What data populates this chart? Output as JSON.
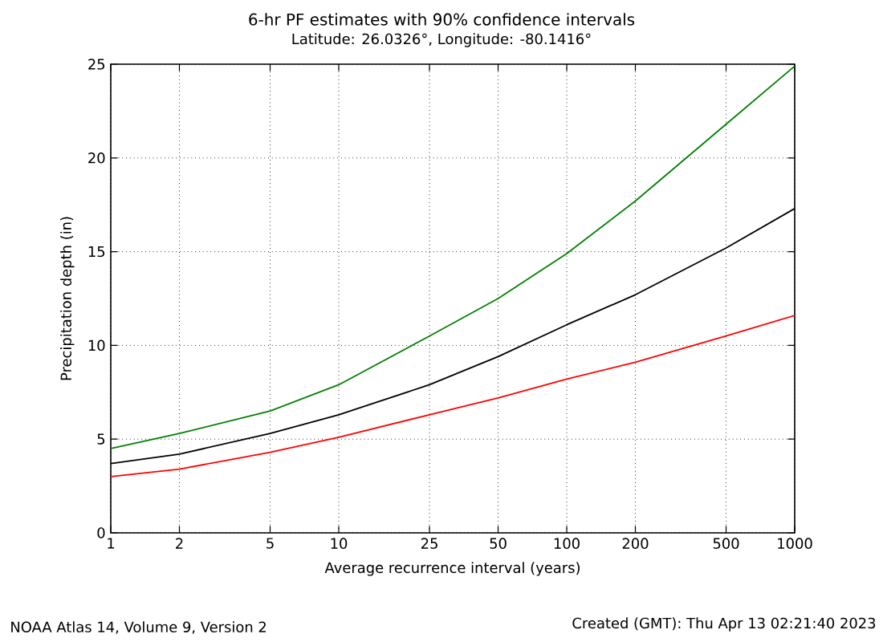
{
  "chart_data": {
    "type": "line",
    "title": "6-hr PF estimates with 90% confidence intervals",
    "subtitle": "Latitude: 26.0326°, Longitude: -80.1416°",
    "xlabel": "Average recurrence interval (years)",
    "ylabel": "Precipitation depth (in)",
    "x": [
      1,
      2,
      5,
      10,
      25,
      50,
      100,
      200,
      500,
      1000
    ],
    "series": [
      {
        "color": "#008000",
        "values": [
          4.5,
          5.3,
          6.5,
          7.9,
          10.5,
          12.5,
          14.9,
          17.7,
          21.8,
          24.9
        ]
      },
      {
        "color": "#000000",
        "values": [
          3.7,
          4.2,
          5.3,
          6.3,
          7.9,
          9.4,
          11.1,
          12.7,
          15.2,
          17.3
        ]
      },
      {
        "color": "#ff0000",
        "values": [
          3.0,
          3.4,
          4.3,
          5.1,
          6.3,
          7.2,
          8.2,
          9.1,
          10.5,
          11.6
        ]
      }
    ],
    "log": "x",
    "xlim": [
      1,
      1000
    ],
    "ylim": [
      0,
      25
    ],
    "xticks": [
      1,
      2,
      5,
      10,
      25,
      50,
      100,
      200,
      500,
      1000
    ],
    "yticks": [
      0,
      5,
      10,
      15,
      20,
      25
    ],
    "grid": true,
    "annotations": [
      "NOAA Atlas 14, Volume 9, Version 2",
      "Created (GMT): Thu Apr 13 02:21:40 2023"
    ]
  }
}
